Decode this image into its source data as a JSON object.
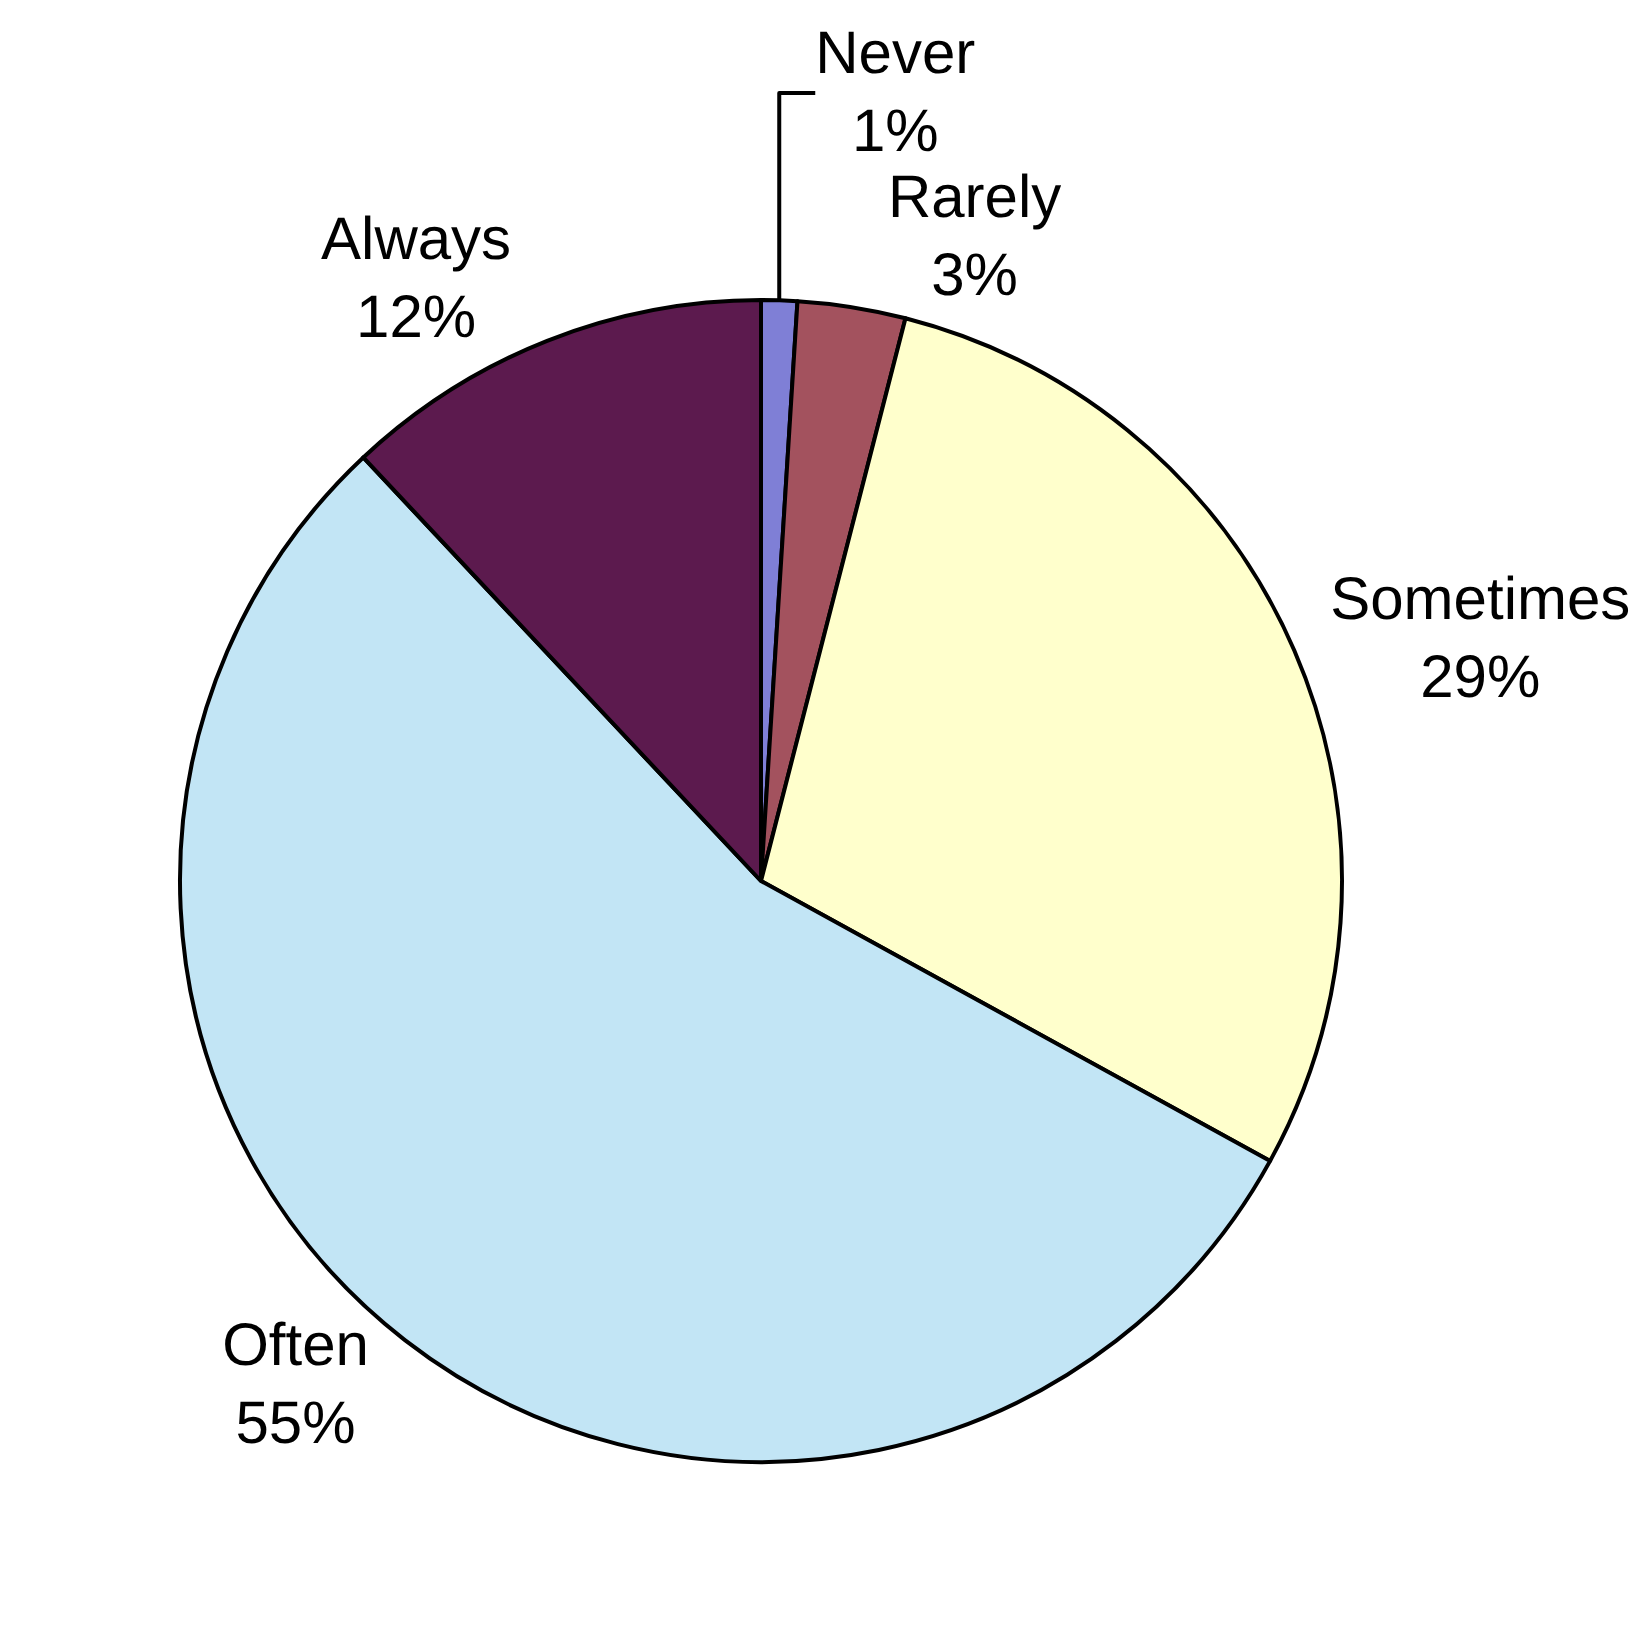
{
  "chart_data": {
    "type": "pie",
    "categories": [
      "Never",
      "Rarely",
      "Sometimes",
      "Often",
      "Always"
    ],
    "values": [
      1,
      3,
      29,
      55,
      12
    ],
    "value_labels": [
      "1%",
      "3%",
      "29%",
      "55%",
      "12%"
    ],
    "colors": [
      "#7f7fd6",
      "#a3525e",
      "#ffffcc",
      "#c2e5f5",
      "#5c1a4e"
    ],
    "legend": false
  }
}
